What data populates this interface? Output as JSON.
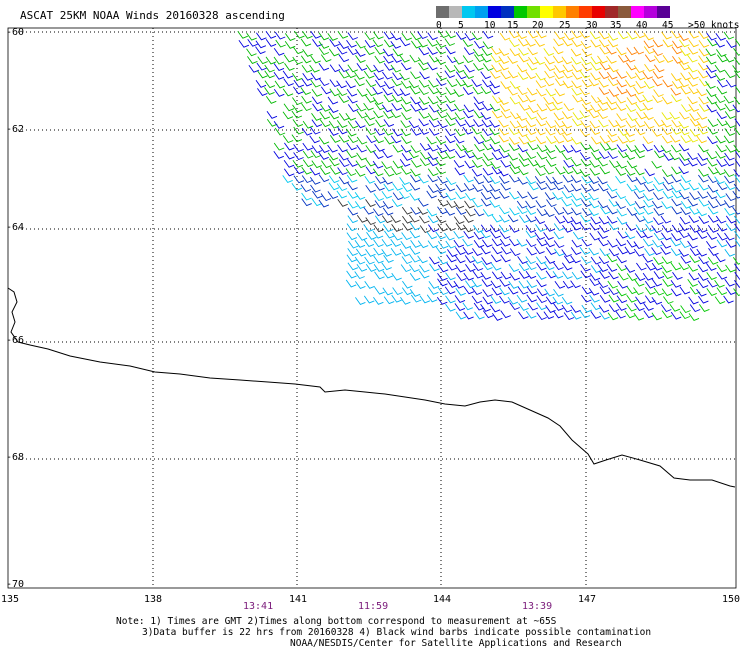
{
  "title": "ASCAT 25KM NOAA Winds 20160328 ascending",
  "colorbar": {
    "colors": [
      "#6e6e6e",
      "#b8b8b8",
      "#00c8f0",
      "#00a0f0",
      "#0000e0",
      "#0030c0",
      "#00c800",
      "#70e000",
      "#ffff00",
      "#ffc800",
      "#ff8000",
      "#ff3c00",
      "#e80000",
      "#a02828",
      "#8a5a3c",
      "#ff00ff",
      "#b400dc",
      "#5a0096"
    ],
    "labels": [
      "0",
      "5",
      "10",
      "15",
      "20",
      "25",
      "30",
      "35",
      "40",
      "45",
      ">50 knots"
    ]
  },
  "lat_labels": [
    "-60",
    "-62",
    "-64",
    "-66",
    "-68",
    "-70"
  ],
  "lon_labels": [
    "135",
    "138",
    "141",
    "144",
    "147",
    "150"
  ],
  "times": [
    "13:41",
    "11:59",
    "13:39"
  ],
  "notes": [
    "Note: 1) Times are GMT 2)Times along bottom correspond to measurement at ~65S",
    "3)Data buffer is 22 hrs from 20160328 4) Black wind barbs indicate possible contamination",
    "NOAA/NESDIS/Center for Satellite Applications and Research"
  ]
}
